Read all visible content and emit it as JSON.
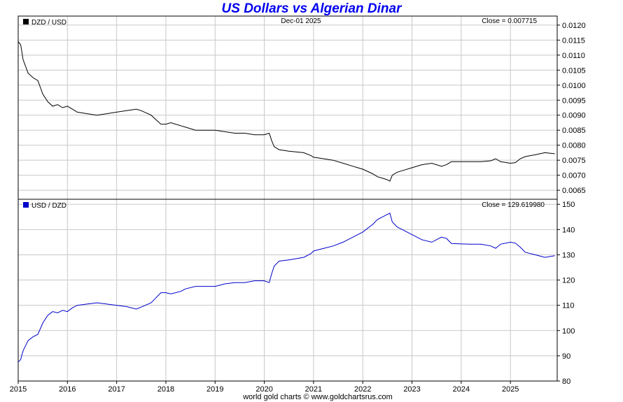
{
  "title": "US Dollars vs Algerian Dinar",
  "footer": "world gold charts © www.goldchartsrus.com",
  "colors": {
    "title": "#0000ee",
    "top_series": "#000000",
    "bottom_series": "#0000cc",
    "grid": "#c8c8c8"
  },
  "chart_data": [
    {
      "type": "line",
      "panel": "top",
      "legend": "DZD / USD",
      "date_label": "Dec-01  2025",
      "close_label": "Close = 0.007715",
      "xlabel": "",
      "ylabel": "",
      "x_ticks": [
        "2015",
        "2016",
        "2017",
        "2018",
        "2019",
        "2020",
        "2021",
        "2022",
        "2023",
        "2024",
        "2025"
      ],
      "x_range": [
        2015.0,
        2025.95
      ],
      "ylim": [
        0.0062,
        0.0123
      ],
      "y_ticks": [
        "0.0065",
        "0.0070",
        "0.0075",
        "0.0080",
        "0.0085",
        "0.0090",
        "0.0095",
        "0.0100",
        "0.0105",
        "0.0110",
        "0.0115",
        "0.0120"
      ],
      "grid": true,
      "series": [
        {
          "name": "DZD / USD",
          "x": [
            2015.0,
            2015.05,
            2015.1,
            2015.2,
            2015.3,
            2015.4,
            2015.5,
            2015.6,
            2015.7,
            2015.8,
            2015.9,
            2016.0,
            2016.1,
            2016.2,
            2016.4,
            2016.6,
            2016.8,
            2017.0,
            2017.2,
            2017.4,
            2017.5,
            2017.7,
            2017.8,
            2017.9,
            2018.0,
            2018.1,
            2018.3,
            2018.4,
            2018.6,
            2018.8,
            2019.0,
            2019.2,
            2019.4,
            2019.6,
            2019.8,
            2020.0,
            2020.1,
            2020.15,
            2020.2,
            2020.3,
            2020.5,
            2020.8,
            2020.95,
            2021.0,
            2021.2,
            2021.4,
            2021.6,
            2021.8,
            2022.0,
            2022.2,
            2022.3,
            2022.4,
            2022.5,
            2022.55,
            2022.6,
            2022.7,
            2022.8,
            2023.0,
            2023.2,
            2023.4,
            2023.6,
            2023.7,
            2023.8,
            2024.0,
            2024.2,
            2024.4,
            2024.6,
            2024.7,
            2024.8,
            2025.0,
            2025.1,
            2025.2,
            2025.3,
            2025.5,
            2025.7,
            2025.9
          ],
          "y": [
            0.01145,
            0.01135,
            0.01085,
            0.0104,
            0.01025,
            0.01015,
            0.0097,
            0.00945,
            0.0093,
            0.00935,
            0.00925,
            0.0093,
            0.0092,
            0.0091,
            0.00905,
            0.009,
            0.00905,
            0.0091,
            0.00915,
            0.0092,
            0.00915,
            0.009,
            0.00885,
            0.0087,
            0.0087,
            0.00875,
            0.00865,
            0.0086,
            0.0085,
            0.0085,
            0.0085,
            0.00845,
            0.0084,
            0.0084,
            0.00835,
            0.00835,
            0.0084,
            0.00815,
            0.00795,
            0.00785,
            0.0078,
            0.00775,
            0.00765,
            0.0076,
            0.00755,
            0.0075,
            0.0074,
            0.0073,
            0.0072,
            0.00705,
            0.00695,
            0.0069,
            0.00685,
            0.0068,
            0.007,
            0.0071,
            0.00715,
            0.00725,
            0.00735,
            0.0074,
            0.0073,
            0.00735,
            0.00745,
            0.00745,
            0.00745,
            0.00745,
            0.00748,
            0.00755,
            0.00745,
            0.0074,
            0.00742,
            0.00755,
            0.00762,
            0.00768,
            0.00775,
            0.007715
          ]
        }
      ]
    },
    {
      "type": "line",
      "panel": "bottom",
      "legend": "USD / DZD",
      "close_label": "Close = 129.619980",
      "xlabel": "",
      "ylabel": "",
      "x_ticks": [
        "2015",
        "2016",
        "2017",
        "2018",
        "2019",
        "2020",
        "2021",
        "2022",
        "2023",
        "2024",
        "2025"
      ],
      "x_range": [
        2015.0,
        2025.95
      ],
      "ylim": [
        80,
        152
      ],
      "y_ticks": [
        "80",
        "90",
        "100",
        "110",
        "120",
        "130",
        "140",
        "150"
      ],
      "grid": true,
      "series": [
        {
          "name": "USD / DZD",
          "x": [
            2015.0,
            2015.05,
            2015.1,
            2015.2,
            2015.3,
            2015.4,
            2015.5,
            2015.6,
            2015.7,
            2015.8,
            2015.9,
            2016.0,
            2016.1,
            2016.2,
            2016.4,
            2016.6,
            2016.8,
            2017.0,
            2017.2,
            2017.4,
            2017.5,
            2017.7,
            2017.8,
            2017.9,
            2018.0,
            2018.1,
            2018.3,
            2018.4,
            2018.6,
            2018.8,
            2019.0,
            2019.2,
            2019.4,
            2019.6,
            2019.8,
            2020.0,
            2020.1,
            2020.15,
            2020.2,
            2020.3,
            2020.5,
            2020.8,
            2020.95,
            2021.0,
            2021.2,
            2021.4,
            2021.6,
            2021.8,
            2022.0,
            2022.2,
            2022.3,
            2022.4,
            2022.5,
            2022.55,
            2022.6,
            2022.7,
            2022.8,
            2023.0,
            2023.2,
            2023.4,
            2023.6,
            2023.7,
            2023.8,
            2024.0,
            2024.2,
            2024.4,
            2024.6,
            2024.7,
            2024.8,
            2025.0,
            2025.1,
            2025.2,
            2025.3,
            2025.5,
            2025.7,
            2025.9
          ],
          "y": [
            87.5,
            88.5,
            92.0,
            96.0,
            97.5,
            98.5,
            103.0,
            106.0,
            107.5,
            107.0,
            108.0,
            107.5,
            109.0,
            110.0,
            110.5,
            111.0,
            110.5,
            110.0,
            109.5,
            108.5,
            109.3,
            111.0,
            113.0,
            115.0,
            115.0,
            114.5,
            115.5,
            116.5,
            117.5,
            117.5,
            117.5,
            118.5,
            119.0,
            119.0,
            119.7,
            119.7,
            119.0,
            122.5,
            125.5,
            127.5,
            128.0,
            129.0,
            130.5,
            131.5,
            132.5,
            133.5,
            135.0,
            137.0,
            139.0,
            142.0,
            144.0,
            145.0,
            146.0,
            146.5,
            143.0,
            141.0,
            140.0,
            138.0,
            136.0,
            135.0,
            137.0,
            136.5,
            134.5,
            134.3,
            134.2,
            134.2,
            133.5,
            132.6,
            134.2,
            135.0,
            134.6,
            133.0,
            131.0,
            130.0,
            129.0,
            129.62
          ]
        }
      ]
    }
  ]
}
